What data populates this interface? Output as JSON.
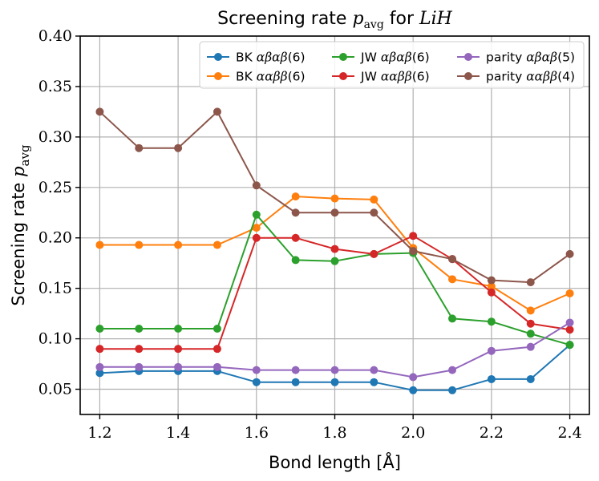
{
  "chart_data": {
    "type": "line",
    "title": "Screening rate p_avg for LiH",
    "title_parts": {
      "prefix": "Screening rate ",
      "var": "p",
      "sub": "avg",
      "mid": " for ",
      "mol": "LiH"
    },
    "xlabel": "Bond length [Å]",
    "ylabel": "Screening rate p_avg",
    "ylabel_parts": {
      "prefix": "Screening rate ",
      "var": "p",
      "sub": "avg"
    },
    "x": [
      1.2,
      1.3,
      1.4,
      1.5,
      1.6,
      1.7,
      1.8,
      1.9,
      2.0,
      2.1,
      2.2,
      2.3,
      2.4
    ],
    "xlim": [
      1.15,
      2.45
    ],
    "ylim": [
      0.025,
      0.4
    ],
    "xticks": [
      "1.2",
      "1.4",
      "1.6",
      "1.8",
      "2.0",
      "2.2",
      "2.4"
    ],
    "xtick_values": [
      1.2,
      1.4,
      1.6,
      1.8,
      2.0,
      2.2,
      2.4
    ],
    "yticks": [
      "0.05",
      "0.10",
      "0.15",
      "0.20",
      "0.25",
      "0.30",
      "0.35",
      "0.40"
    ],
    "ytick_values": [
      0.05,
      0.1,
      0.15,
      0.2,
      0.25,
      0.3,
      0.35,
      0.4
    ],
    "grid": true,
    "legend_position": "top-right",
    "legend_columns": 3,
    "series": [
      {
        "name": "BK αβαβ(6)",
        "label_prefix": "BK ",
        "label_greek": "αβαβ",
        "label_suffix": "(6)",
        "color": "#1f77b4",
        "values": [
          0.066,
          0.068,
          0.068,
          0.068,
          0.057,
          0.057,
          0.057,
          0.057,
          0.049,
          0.049,
          0.06,
          0.06,
          0.094
        ]
      },
      {
        "name": "BK ααββ(6)",
        "label_prefix": "BK ",
        "label_greek": "ααββ",
        "label_suffix": "(6)",
        "color": "#ff7f0e",
        "values": [
          0.193,
          0.193,
          0.193,
          0.193,
          0.21,
          0.241,
          0.239,
          0.238,
          0.19,
          0.159,
          0.152,
          0.128,
          0.145
        ]
      },
      {
        "name": "JW αβαβ(6)",
        "label_prefix": "JW ",
        "label_greek": "αβαβ",
        "label_suffix": "(6)",
        "color": "#2ca02c",
        "values": [
          0.11,
          0.11,
          0.11,
          0.11,
          0.223,
          0.178,
          0.177,
          0.184,
          0.185,
          0.12,
          0.117,
          0.105,
          0.094
        ]
      },
      {
        "name": "JW ααββ(6)",
        "label_prefix": "JW ",
        "label_greek": "ααββ",
        "label_suffix": "(6)",
        "color": "#d62728",
        "values": [
          0.09,
          0.09,
          0.09,
          0.09,
          0.2,
          0.2,
          0.189,
          0.184,
          0.202,
          0.179,
          0.146,
          0.115,
          0.109
        ]
      },
      {
        "name": "parity αβαβ(5)",
        "label_prefix": "parity ",
        "label_greek": "αβαβ",
        "label_suffix": "(5)",
        "color": "#9467bd",
        "values": [
          0.072,
          0.072,
          0.072,
          0.072,
          0.069,
          0.069,
          0.069,
          0.069,
          0.062,
          0.069,
          0.088,
          0.092,
          0.116
        ]
      },
      {
        "name": "parity ααββ(4)",
        "label_prefix": "parity ",
        "label_greek": "ααββ",
        "label_suffix": "(4)",
        "color": "#8c564b",
        "values": [
          0.325,
          0.289,
          0.289,
          0.325,
          0.252,
          0.225,
          0.225,
          0.225,
          0.187,
          0.179,
          0.158,
          0.156,
          0.184
        ]
      }
    ]
  }
}
